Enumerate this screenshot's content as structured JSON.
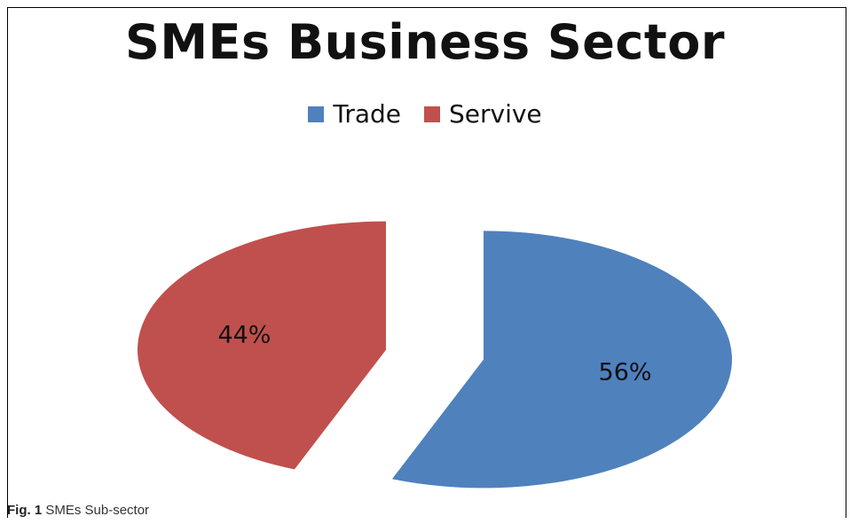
{
  "chart_data": {
    "type": "pie",
    "title": "SMEs Business Sector",
    "categories": [
      "Trade",
      "Servive"
    ],
    "values": [
      56,
      44
    ],
    "labels": [
      "56%",
      "44%"
    ],
    "colors": [
      "#4F81BD",
      "#C0504D"
    ],
    "exploded": true,
    "legend_position": "top"
  },
  "legend": {
    "items": [
      {
        "label": "Trade",
        "color": "#4F81BD"
      },
      {
        "label": "Servive",
        "color": "#C0504D"
      }
    ]
  },
  "caption": {
    "figure_number": "Fig. 1",
    "text": "SMEs Sub-sector"
  }
}
